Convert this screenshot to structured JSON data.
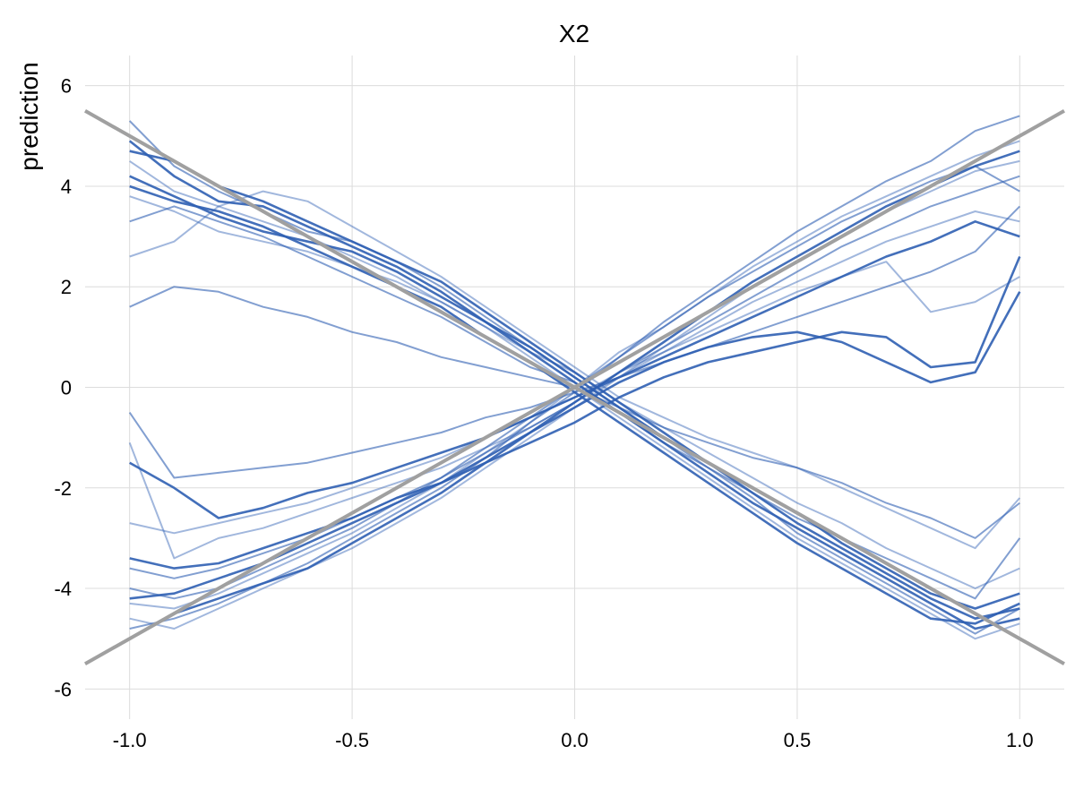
{
  "chart_data": {
    "type": "line",
    "title": "X2",
    "xlabel": "",
    "ylabel": "prediction",
    "xlim": [
      -1.1,
      1.1
    ],
    "ylim": [
      -6.6,
      6.6
    ],
    "x_ticks": [
      -1.0,
      -0.5,
      0.0,
      0.5,
      1.0
    ],
    "x_tick_labels": [
      "-1.0",
      "-0.5",
      "0.0",
      "0.5",
      "1.0"
    ],
    "y_ticks": [
      6,
      4,
      2,
      0,
      -2,
      -4,
      -6
    ],
    "y_tick_labels": [
      "6",
      "4",
      "2",
      "0",
      "-2",
      "-4",
      "-6"
    ],
    "grid": true,
    "legend": "none",
    "line_color": "#2f5fb3",
    "reference_color": "#a0a0a0",
    "reference_lines": [
      {
        "x": [
          -1.1,
          1.1
        ],
        "y": [
          5.5,
          -5.5
        ]
      },
      {
        "x": [
          -1.1,
          1.1
        ],
        "y": [
          -5.5,
          5.5
        ]
      }
    ],
    "x_grid": [
      -1.0,
      -0.9,
      -0.8,
      -0.7,
      -0.6,
      -0.5,
      -0.4,
      -0.3,
      -0.2,
      -0.1,
      0.0,
      0.1,
      0.2,
      0.3,
      0.4,
      0.5,
      0.6,
      0.7,
      0.8,
      0.9,
      1.0
    ],
    "series": [
      {
        "values": [
          4.9,
          4.2,
          3.7,
          3.6,
          3.2,
          2.8,
          2.4,
          1.9,
          1.3,
          0.7,
          0.1,
          -0.5,
          -1.1,
          -1.7,
          -2.3,
          -2.8,
          -3.3,
          -3.8,
          -4.3,
          -4.8,
          -4.6
        ]
      },
      {
        "values": [
          5.3,
          4.4,
          3.9,
          3.5,
          3.1,
          2.9,
          2.5,
          2.0,
          1.4,
          0.8,
          0.2,
          -0.4,
          -1.0,
          -1.6,
          -2.2,
          -2.9,
          -3.4,
          -3.9,
          -4.4,
          -4.9,
          -4.4
        ]
      },
      {
        "values": [
          4.5,
          3.9,
          3.6,
          3.3,
          3.0,
          2.6,
          2.2,
          1.7,
          1.2,
          0.6,
          0.0,
          -0.6,
          -1.2,
          -1.8,
          -2.4,
          -3.0,
          -3.5,
          -4.0,
          -4.5,
          -5.0,
          -4.7
        ]
      },
      {
        "values": [
          4.0,
          3.7,
          3.5,
          3.2,
          2.8,
          2.4,
          2.0,
          1.6,
          1.0,
          0.5,
          -0.1,
          -0.7,
          -1.3,
          -1.9,
          -2.5,
          -3.1,
          -3.6,
          -4.1,
          -4.6,
          -4.7,
          -4.3
        ]
      },
      {
        "values": [
          3.3,
          3.6,
          3.3,
          3.0,
          2.6,
          2.2,
          1.8,
          1.4,
          0.9,
          0.4,
          0.1,
          -0.5,
          -1.1,
          -1.6,
          -2.1,
          -2.6,
          -3.0,
          -3.4,
          -3.8,
          -4.2,
          -3.0
        ]
      },
      {
        "values": [
          3.8,
          3.5,
          3.1,
          2.9,
          2.7,
          2.4,
          2.1,
          1.7,
          1.2,
          0.7,
          0.3,
          -0.3,
          -0.8,
          -1.3,
          -1.8,
          -2.3,
          -2.7,
          -3.2,
          -3.6,
          -4.0,
          -3.6
        ]
      },
      {
        "values": [
          4.2,
          3.8,
          3.4,
          3.1,
          2.9,
          2.7,
          2.3,
          1.8,
          1.3,
          0.8,
          0.2,
          -0.4,
          -1.0,
          -1.5,
          -2.0,
          -2.5,
          -3.1,
          -3.6,
          -4.1,
          -4.4,
          -4.1
        ]
      },
      {
        "values": [
          1.6,
          2.0,
          1.9,
          1.6,
          1.4,
          1.1,
          0.9,
          0.6,
          0.4,
          0.2,
          0.0,
          -0.4,
          -0.8,
          -1.1,
          -1.4,
          -1.6,
          -1.9,
          -2.3,
          -2.6,
          -3.0,
          -2.3
        ]
      },
      {
        "values": [
          2.6,
          2.9,
          3.6,
          3.9,
          3.7,
          3.2,
          2.7,
          2.2,
          1.6,
          1.0,
          0.4,
          -0.2,
          -0.6,
          -1.0,
          -1.3,
          -1.6,
          -2.0,
          -2.4,
          -2.8,
          -3.2,
          -2.2
        ]
      },
      {
        "values": [
          4.7,
          4.5,
          4.0,
          3.7,
          3.3,
          2.9,
          2.5,
          2.1,
          1.5,
          0.9,
          0.3,
          -0.3,
          -0.9,
          -1.5,
          -2.1,
          -2.7,
          -3.2,
          -3.7,
          -4.2,
          -4.6,
          -4.4
        ]
      },
      {
        "values": [
          -4.8,
          -4.6,
          -4.3,
          -3.9,
          -3.5,
          -3.0,
          -2.5,
          -2.0,
          -1.4,
          -0.7,
          -0.1,
          0.6,
          1.3,
          1.9,
          2.5,
          3.1,
          3.6,
          4.1,
          4.5,
          5.1,
          5.4
        ]
      },
      {
        "values": [
          -4.3,
          -4.4,
          -4.1,
          -3.7,
          -3.3,
          -2.9,
          -2.4,
          -1.9,
          -1.3,
          -0.7,
          0.0,
          0.7,
          1.2,
          1.8,
          2.4,
          2.9,
          3.4,
          3.8,
          4.2,
          4.6,
          4.9
        ]
      },
      {
        "values": [
          -5.0,
          -4.5,
          -4.2,
          -3.9,
          -3.6,
          -3.1,
          -2.6,
          -2.1,
          -1.5,
          -0.9,
          -0.3,
          0.3,
          0.9,
          1.5,
          2.1,
          2.6,
          3.1,
          3.6,
          4.0,
          4.4,
          4.7
        ]
      },
      {
        "values": [
          -3.6,
          -3.8,
          -3.6,
          -3.3,
          -3.0,
          -2.6,
          -2.2,
          -1.8,
          -1.3,
          -0.8,
          -0.3,
          0.3,
          0.8,
          1.3,
          1.8,
          2.3,
          2.8,
          3.2,
          3.6,
          3.9,
          4.2
        ]
      },
      {
        "values": [
          -1.1,
          -3.4,
          -3.0,
          -2.8,
          -2.5,
          -2.2,
          -1.9,
          -1.6,
          -1.2,
          -0.8,
          -0.3,
          0.2,
          0.7,
          1.2,
          1.7,
          2.1,
          2.5,
          2.9,
          3.2,
          3.5,
          3.3
        ]
      },
      {
        "values": [
          -1.5,
          -2.0,
          -2.6,
          -2.4,
          -2.1,
          -1.9,
          -1.6,
          -1.3,
          -1.0,
          -0.6,
          -0.2,
          0.2,
          0.6,
          1.0,
          1.4,
          1.8,
          2.2,
          2.6,
          2.9,
          3.3,
          3.0
        ]
      },
      {
        "values": [
          -0.5,
          -1.8,
          -1.7,
          -1.6,
          -1.5,
          -1.3,
          -1.1,
          -0.9,
          -0.6,
          -0.4,
          -0.1,
          0.2,
          0.5,
          0.8,
          1.1,
          1.4,
          1.7,
          2.0,
          2.3,
          2.7,
          3.6
        ]
      },
      {
        "values": [
          -2.7,
          -2.9,
          -2.7,
          -2.5,
          -2.3,
          -2.0,
          -1.7,
          -1.4,
          -1.0,
          -0.6,
          -0.2,
          0.3,
          0.7,
          1.1,
          1.5,
          1.9,
          2.2,
          2.5,
          1.5,
          1.7,
          2.2
        ]
      },
      {
        "values": [
          -3.4,
          -3.6,
          -3.5,
          -3.2,
          -2.9,
          -2.6,
          -2.2,
          -1.9,
          -1.5,
          -1.1,
          -0.7,
          -0.2,
          0.2,
          0.5,
          0.7,
          0.9,
          1.1,
          1.0,
          0.4,
          0.5,
          2.6
        ]
      },
      {
        "values": [
          -4.0,
          -4.2,
          -4.0,
          -3.6,
          -3.2,
          -2.8,
          -2.3,
          -1.8,
          -1.2,
          -0.6,
          0.0,
          0.6,
          1.2,
          1.8,
          2.3,
          2.8,
          3.3,
          3.7,
          4.1,
          4.4,
          3.9
        ]
      },
      {
        "values": [
          -4.6,
          -4.8,
          -4.4,
          -4.0,
          -3.6,
          -3.2,
          -2.7,
          -2.2,
          -1.6,
          -1.0,
          -0.4,
          0.2,
          0.8,
          1.4,
          2.0,
          2.5,
          3.0,
          3.5,
          3.9,
          4.3,
          4.5
        ]
      },
      {
        "values": [
          -4.2,
          -4.1,
          -3.8,
          -3.5,
          -3.1,
          -2.7,
          -2.3,
          -1.9,
          -1.4,
          -0.9,
          -0.4,
          0.1,
          0.5,
          0.8,
          1.0,
          1.1,
          0.9,
          0.5,
          0.1,
          0.3,
          1.9
        ]
      }
    ]
  }
}
